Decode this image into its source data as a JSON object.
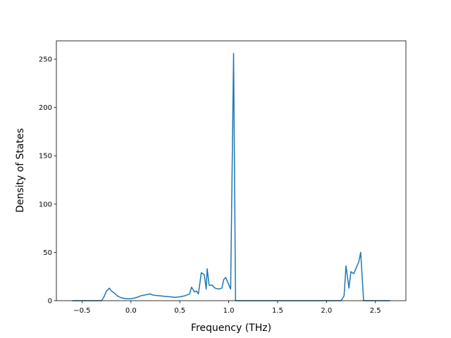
{
  "chart_data": {
    "type": "line",
    "x_label": "Frequency (THz)",
    "y_label": "Density of States",
    "color": "#1f77b4",
    "x": [
      -0.6,
      -0.3,
      -0.28,
      -0.25,
      -0.22,
      -0.2,
      -0.17,
      -0.14,
      -0.1,
      -0.05,
      0,
      0.05,
      0.1,
      0.15,
      0.2,
      0.22,
      0.25,
      0.3,
      0.35,
      0.4,
      0.45,
      0.5,
      0.55,
      0.6,
      0.62,
      0.65,
      0.67,
      0.69,
      0.72,
      0.75,
      0.77,
      0.78,
      0.8,
      0.83,
      0.86,
      0.9,
      0.93,
      0.95,
      0.97,
      1.02,
      1.05,
      1.07,
      2.15,
      2.18,
      2.2,
      2.23,
      2.25,
      2.28,
      2.3,
      2.33,
      2.35,
      2.38,
      2.65
    ],
    "values": [
      0,
      0,
      3,
      10,
      13,
      10,
      8,
      5,
      3,
      2,
      2,
      3,
      5,
      6,
      7,
      6,
      5.5,
      5,
      4.5,
      4,
      3.5,
      4,
      5,
      7,
      14,
      9,
      10,
      7,
      29,
      27,
      12,
      33,
      16,
      16,
      13,
      12,
      13,
      22,
      24,
      12,
      256,
      0,
      0,
      5,
      36,
      13,
      30,
      28,
      33,
      40,
      50,
      0,
      0
    ],
    "xlim": [
      -0.7625,
      2.8125
    ],
    "xticks": [
      {
        "value": -0.5,
        "label": "−0.5"
      },
      {
        "value": 0,
        "label": "0.0"
      },
      {
        "value": 0.5,
        "label": "0.5"
      },
      {
        "value": 1,
        "label": "1.0"
      },
      {
        "value": 1.5,
        "label": "1.5"
      },
      {
        "value": 2,
        "label": "2.0"
      },
      {
        "value": 2.5,
        "label": "2.5"
      }
    ],
    "ylim": [
      0,
      269
    ],
    "yticks": [
      0,
      50,
      100,
      150,
      200,
      250
    ]
  }
}
